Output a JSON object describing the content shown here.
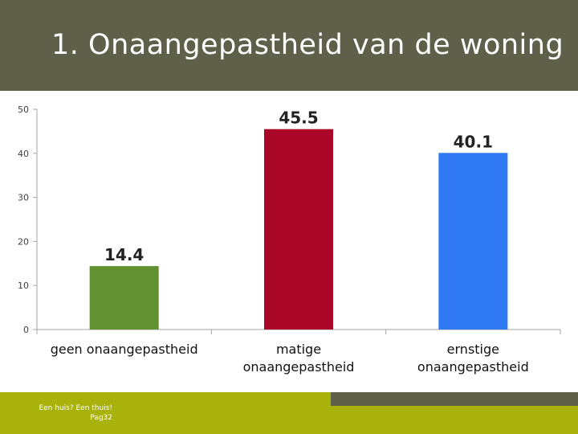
{
  "slide": {
    "title": "1. Onaangepastheid van de woning",
    "footer_line1": "Een huis? Een thuis!",
    "footer_line2": "Pag32"
  },
  "colors": {
    "title_bar": "#5e604a",
    "footer": "#a9b20b"
  },
  "chart_data": {
    "type": "bar",
    "categories": [
      "geen onaangepastheid",
      "matige onaangepastheid",
      "ernstige onaangepastheid"
    ],
    "category_lines": [
      [
        "geen onaangepastheid"
      ],
      [
        "matige",
        "onaangepastheid"
      ],
      [
        "ernstige",
        "onaangepastheid"
      ]
    ],
    "values": [
      14.4,
      45.5,
      40.1
    ],
    "labels": [
      "14.4",
      "45.5",
      "40.1"
    ],
    "bar_colors": [
      "#619130",
      "#a90628",
      "#2f79f3"
    ],
    "ylim": [
      0,
      50
    ],
    "yticks": [
      0,
      10,
      20,
      30,
      40,
      50
    ],
    "grid": false
  }
}
